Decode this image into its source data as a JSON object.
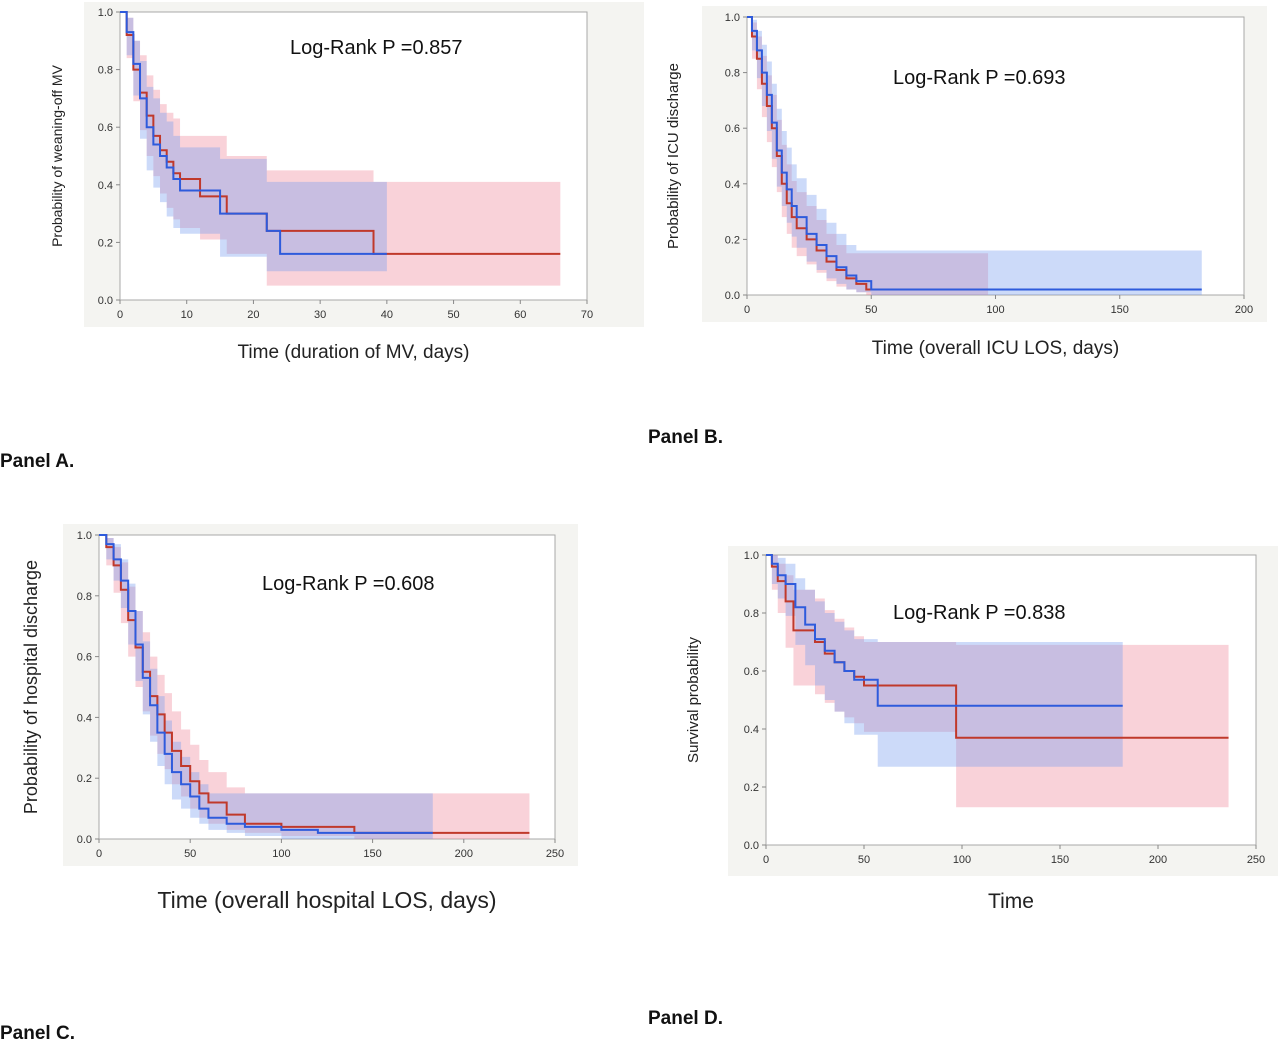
{
  "panel_labels": [
    "Panel A.",
    "Panel B.",
    "Panel C.",
    "Panel D."
  ],
  "chart_data": [
    {
      "type": "line",
      "panel": "Panel A.",
      "xlabel": "Time (duration of MV, days)",
      "ylabel": "Probability of weaning-off MV",
      "annotation": "Log-Rank P  =0.857",
      "xlim": [
        0,
        70
      ],
      "ylim": [
        0,
        1
      ],
      "xticks": [
        "0",
        "10",
        "20",
        "30",
        "40",
        "50",
        "60",
        "70"
      ],
      "yticks": [
        "0.0",
        "0.2",
        "0.4",
        "0.6",
        "0.8",
        "1.0"
      ],
      "colors": {
        "series1": "#c0392b",
        "series2": "#2e5bdc"
      },
      "series": [
        {
          "x": [
            0,
            1,
            2,
            3,
            4,
            5,
            6,
            7,
            8,
            9,
            12,
            16,
            22,
            38,
            66
          ],
          "y": [
            1.0,
            0.92,
            0.8,
            0.72,
            0.64,
            0.57,
            0.52,
            0.48,
            0.44,
            0.42,
            0.36,
            0.3,
            0.24,
            0.16,
            0.16
          ],
          "lower": [
            1.0,
            0.84,
            0.69,
            0.59,
            0.5,
            0.43,
            0.37,
            0.32,
            0.28,
            0.25,
            0.21,
            0.16,
            0.05,
            0.05,
            0.05
          ],
          "upper": [
            1.0,
            0.98,
            0.9,
            0.85,
            0.78,
            0.73,
            0.68,
            0.65,
            0.63,
            0.57,
            0.57,
            0.5,
            0.45,
            0.41,
            0.41
          ]
        },
        {
          "x": [
            0,
            1,
            2,
            3,
            4,
            5,
            6,
            7,
            8,
            9,
            15,
            22,
            24,
            40
          ],
          "y": [
            1.0,
            0.93,
            0.82,
            0.7,
            0.6,
            0.54,
            0.5,
            0.46,
            0.42,
            0.38,
            0.3,
            0.24,
            0.16,
            0.16
          ],
          "lower": [
            1.0,
            0.85,
            0.71,
            0.56,
            0.45,
            0.39,
            0.34,
            0.29,
            0.25,
            0.23,
            0.15,
            0.1,
            0.1,
            0.1
          ],
          "upper": [
            1.0,
            0.98,
            0.9,
            0.83,
            0.74,
            0.7,
            0.65,
            0.62,
            0.57,
            0.53,
            0.49,
            0.41,
            0.41,
            0.41
          ]
        }
      ]
    },
    {
      "type": "line",
      "panel": "Panel B.",
      "xlabel": "Time (overall ICU LOS, days)",
      "ylabel": "Probability of ICU discharge",
      "annotation": "Log-Rank P  =0.693",
      "xlim": [
        0,
        200
      ],
      "ylim": [
        0,
        1
      ],
      "xticks": [
        "0",
        "50",
        "100",
        "150",
        "200"
      ],
      "yticks": [
        "0.0",
        "0.2",
        "0.4",
        "0.6",
        "0.8",
        "1.0"
      ],
      "colors": {
        "series1": "#c0392b",
        "series2": "#2e5bdc"
      },
      "series": [
        {
          "x": [
            0,
            2,
            4,
            6,
            8,
            10,
            12,
            14,
            16,
            18,
            20,
            24,
            28,
            32,
            36,
            40,
            44,
            48,
            97
          ],
          "y": [
            1.0,
            0.93,
            0.85,
            0.76,
            0.68,
            0.6,
            0.5,
            0.4,
            0.33,
            0.28,
            0.24,
            0.2,
            0.16,
            0.12,
            0.09,
            0.06,
            0.04,
            0.02,
            0.02
          ],
          "lower": [
            1.0,
            0.85,
            0.74,
            0.64,
            0.55,
            0.46,
            0.37,
            0.28,
            0.22,
            0.17,
            0.14,
            0.11,
            0.08,
            0.05,
            0.03,
            0.02,
            0.01,
            0.0,
            0.0
          ],
          "upper": [
            1.0,
            0.98,
            0.93,
            0.86,
            0.79,
            0.72,
            0.63,
            0.54,
            0.47,
            0.41,
            0.37,
            0.32,
            0.27,
            0.22,
            0.18,
            0.15,
            0.15,
            0.15,
            0.15
          ]
        },
        {
          "x": [
            0,
            2,
            4,
            6,
            8,
            10,
            12,
            14,
            16,
            18,
            20,
            24,
            28,
            32,
            36,
            40,
            44,
            50,
            183
          ],
          "y": [
            1.0,
            0.95,
            0.88,
            0.8,
            0.72,
            0.62,
            0.52,
            0.44,
            0.38,
            0.32,
            0.28,
            0.22,
            0.18,
            0.14,
            0.1,
            0.07,
            0.05,
            0.02,
            0.02
          ],
          "lower": [
            1.0,
            0.88,
            0.78,
            0.68,
            0.59,
            0.49,
            0.39,
            0.32,
            0.26,
            0.21,
            0.17,
            0.12,
            0.09,
            0.06,
            0.04,
            0.02,
            0.01,
            0.0,
            0.0
          ],
          "upper": [
            1.0,
            0.99,
            0.95,
            0.9,
            0.84,
            0.76,
            0.67,
            0.59,
            0.53,
            0.47,
            0.42,
            0.36,
            0.31,
            0.26,
            0.22,
            0.18,
            0.16,
            0.16,
            0.16
          ]
        }
      ]
    },
    {
      "type": "line",
      "panel": "Panel C.",
      "xlabel": "Time (overall hospital LOS, days)",
      "ylabel": "Probability of hospital discharge",
      "annotation": "Log-Rank P  =0.608",
      "xlim": [
        0,
        250
      ],
      "ylim": [
        0,
        1
      ],
      "xticks": [
        "0",
        "50",
        "100",
        "150",
        "200",
        "250"
      ],
      "yticks": [
        "0.0",
        "0.2",
        "0.4",
        "0.6",
        "0.8",
        "1.0"
      ],
      "colors": {
        "series1": "#c0392b",
        "series2": "#2e5bdc"
      },
      "series": [
        {
          "x": [
            0,
            4,
            8,
            12,
            16,
            20,
            24,
            28,
            32,
            36,
            40,
            45,
            50,
            55,
            60,
            70,
            80,
            100,
            140,
            236
          ],
          "y": [
            1.0,
            0.96,
            0.9,
            0.82,
            0.72,
            0.63,
            0.55,
            0.47,
            0.41,
            0.35,
            0.29,
            0.24,
            0.19,
            0.15,
            0.12,
            0.08,
            0.05,
            0.04,
            0.02,
            0.02
          ],
          "lower": [
            1.0,
            0.9,
            0.81,
            0.71,
            0.6,
            0.5,
            0.42,
            0.34,
            0.28,
            0.23,
            0.18,
            0.14,
            0.1,
            0.07,
            0.05,
            0.03,
            0.02,
            0.01,
            0.0,
            0.0
          ],
          "upper": [
            1.0,
            0.99,
            0.96,
            0.91,
            0.83,
            0.75,
            0.68,
            0.6,
            0.54,
            0.48,
            0.42,
            0.36,
            0.31,
            0.26,
            0.22,
            0.17,
            0.15,
            0.15,
            0.15,
            0.15
          ]
        },
        {
          "x": [
            0,
            4,
            8,
            12,
            16,
            20,
            24,
            28,
            32,
            36,
            40,
            45,
            50,
            55,
            60,
            70,
            80,
            100,
            120,
            183
          ],
          "y": [
            1.0,
            0.97,
            0.92,
            0.85,
            0.75,
            0.64,
            0.53,
            0.44,
            0.35,
            0.28,
            0.22,
            0.18,
            0.14,
            0.1,
            0.07,
            0.05,
            0.04,
            0.03,
            0.02,
            0.02
          ],
          "lower": [
            1.0,
            0.92,
            0.85,
            0.76,
            0.64,
            0.52,
            0.41,
            0.32,
            0.24,
            0.18,
            0.13,
            0.1,
            0.07,
            0.05,
            0.03,
            0.02,
            0.01,
            0.0,
            0.0,
            0.0
          ],
          "upper": [
            1.0,
            0.99,
            0.97,
            0.92,
            0.84,
            0.75,
            0.65,
            0.56,
            0.47,
            0.39,
            0.32,
            0.27,
            0.22,
            0.18,
            0.15,
            0.15,
            0.15,
            0.15,
            0.15,
            0.15
          ]
        }
      ]
    },
    {
      "type": "line",
      "panel": "Panel D.",
      "xlabel": "Time",
      "ylabel": "Survival probability",
      "annotation": "Log-Rank P  =0.838",
      "xlim": [
        0,
        250
      ],
      "ylim": [
        0,
        1
      ],
      "xticks": [
        "0",
        "50",
        "100",
        "150",
        "200",
        "250"
      ],
      "yticks": [
        "0.0",
        "0.2",
        "0.4",
        "0.6",
        "0.8",
        "1.0"
      ],
      "colors": {
        "series1": "#c0392b",
        "series2": "#2e5bdc"
      },
      "series": [
        {
          "x": [
            0,
            3,
            6,
            10,
            14,
            20,
            25,
            30,
            35,
            40,
            45,
            50,
            97,
            236
          ],
          "y": [
            1.0,
            0.96,
            0.91,
            0.84,
            0.74,
            0.74,
            0.7,
            0.66,
            0.63,
            0.6,
            0.58,
            0.55,
            0.37,
            0.37
          ],
          "lower": [
            1.0,
            0.88,
            0.8,
            0.68,
            0.55,
            0.55,
            0.52,
            0.49,
            0.46,
            0.44,
            0.42,
            0.39,
            0.13,
            0.13
          ],
          "upper": [
            1.0,
            1.0,
            0.97,
            0.93,
            0.88,
            0.88,
            0.85,
            0.81,
            0.78,
            0.75,
            0.72,
            0.7,
            0.69,
            0.69
          ]
        },
        {
          "x": [
            0,
            3,
            6,
            10,
            15,
            20,
            25,
            30,
            35,
            40,
            45,
            57,
            182
          ],
          "y": [
            1.0,
            0.97,
            0.93,
            0.9,
            0.82,
            0.76,
            0.71,
            0.67,
            0.63,
            0.6,
            0.57,
            0.48,
            0.48
          ],
          "lower": [
            1.0,
            0.9,
            0.85,
            0.79,
            0.69,
            0.62,
            0.55,
            0.5,
            0.46,
            0.42,
            0.38,
            0.27,
            0.27
          ],
          "upper": [
            1.0,
            1.0,
            0.99,
            0.97,
            0.92,
            0.88,
            0.84,
            0.8,
            0.77,
            0.74,
            0.71,
            0.7,
            0.7
          ]
        }
      ]
    }
  ]
}
